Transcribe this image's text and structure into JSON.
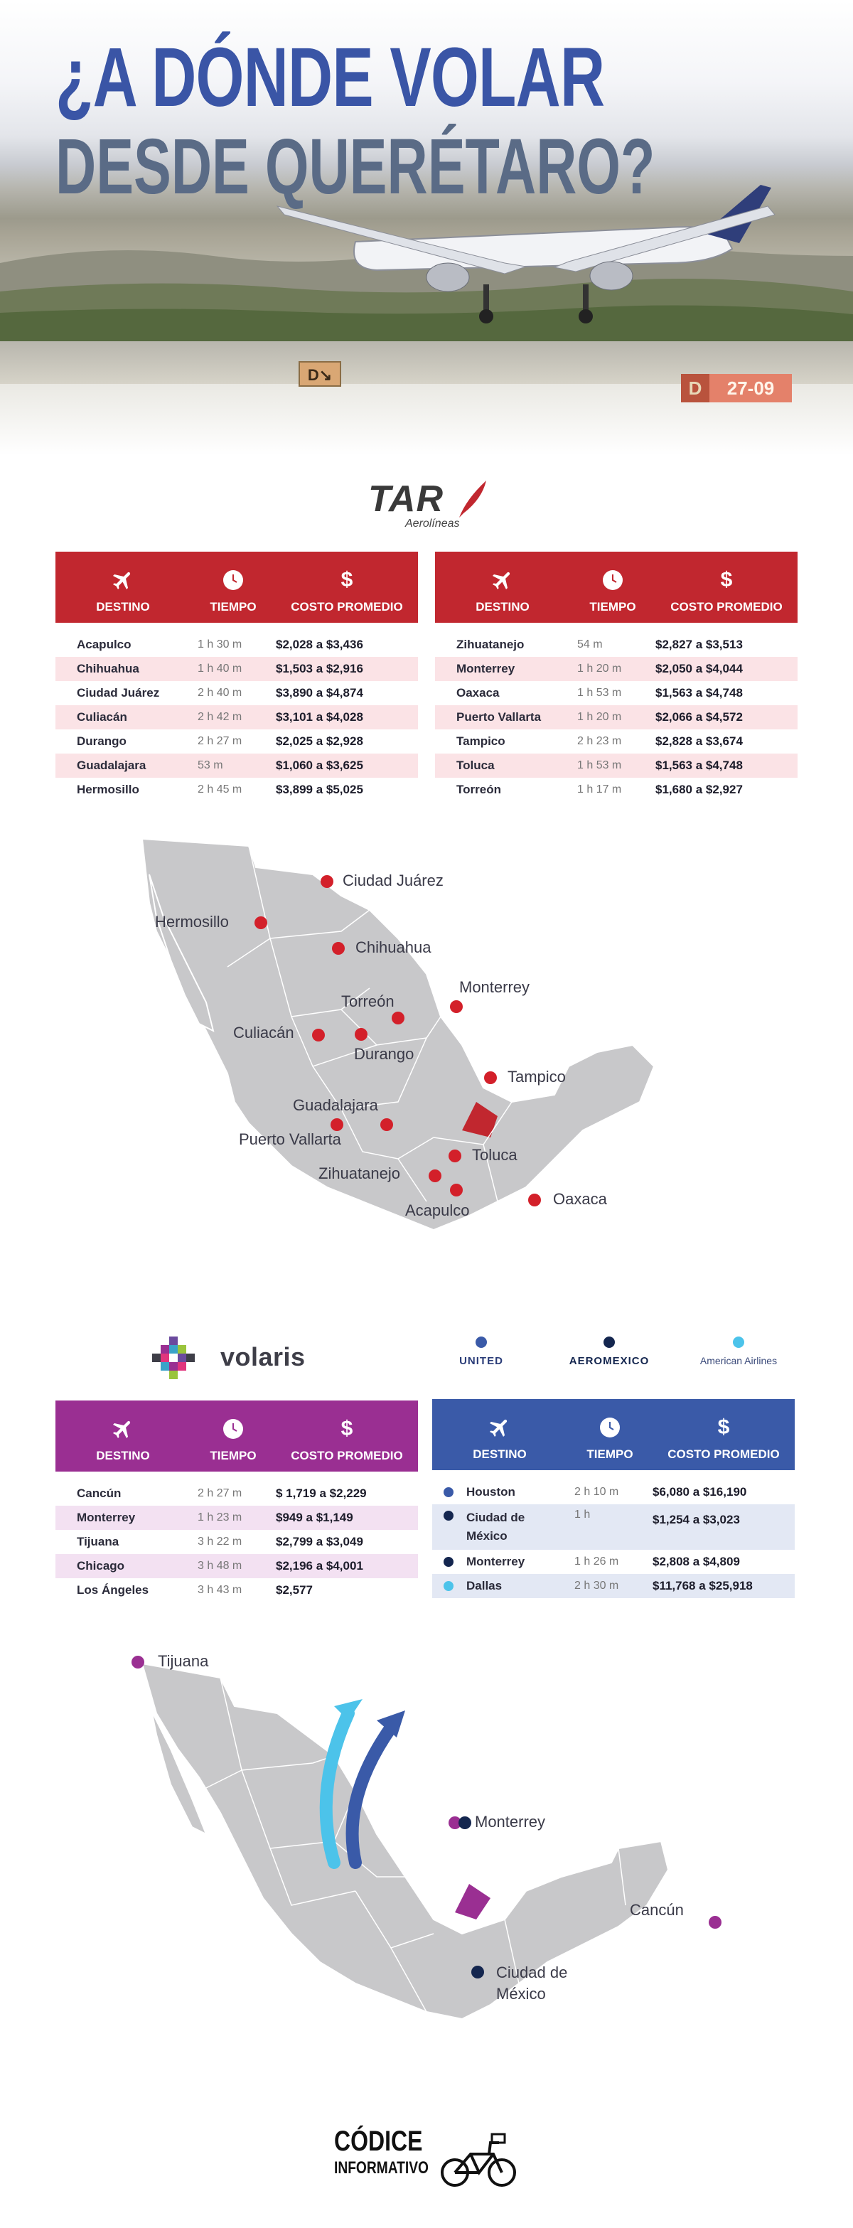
{
  "hero": {
    "title_line1": "¿A DÓNDE VOLAR",
    "title_line2": "DESDE QUERÉTARO?",
    "taxi_sign": "D↘",
    "runway_sign_left": "D",
    "runway_sign_right": "27-09"
  },
  "tar": {
    "logo_word": "TAR",
    "logo_sub": "Aerolíneas",
    "headers": {
      "destino": "DESTINO",
      "tiempo": "TIEMPO",
      "costo": "COSTO PROMEDIO",
      "dollar": "$"
    },
    "left_rows": [
      {
        "destino": "Acapulco",
        "tiempo": "1 h 30 m",
        "costo": "$2,028 a $3,436"
      },
      {
        "destino": "Chihuahua",
        "tiempo": "1 h 40 m",
        "costo": "$1,503 a $2,916"
      },
      {
        "destino": "Ciudad Juárez",
        "tiempo": "2 h 40 m",
        "costo": "$3,890 a $4,874"
      },
      {
        "destino": "Culiacán",
        "tiempo": "2 h 42 m",
        "costo": "$3,101 a $4,028"
      },
      {
        "destino": "Durango",
        "tiempo": "2 h 27 m",
        "costo": "$2,025 a $2,928"
      },
      {
        "destino": "Guadalajara",
        "tiempo": "53 m",
        "costo": "$1,060 a $3,625"
      },
      {
        "destino": "Hermosillo",
        "tiempo": "2 h 45 m",
        "costo": "$3,899 a $5,025"
      }
    ],
    "right_rows": [
      {
        "destino": "Zihuatanejo",
        "tiempo": "54 m",
        "costo": "$2,827 a $3,513"
      },
      {
        "destino": "Monterrey",
        "tiempo": "1 h 20 m",
        "costo": "$2,050 a $4,044"
      },
      {
        "destino": "Oaxaca",
        "tiempo": "1 h 53 m",
        "costo": "$1,563 a $4,748"
      },
      {
        "destino": "Puerto Vallarta",
        "tiempo": "1 h 20 m",
        "costo": "$2,066 a $4,572"
      },
      {
        "destino": "Tampico",
        "tiempo": "2 h 23 m",
        "costo": "$2,828 a $3,674"
      },
      {
        "destino": "Toluca",
        "tiempo": "1 h 53 m",
        "costo": "$1,563 a $4,748"
      },
      {
        "destino": "Torreón",
        "tiempo": "1 h 17 m",
        "costo": "$1,680 a $2,927"
      }
    ]
  },
  "map1": {
    "labels": [
      "Ciudad Juárez",
      "Hermosillo",
      "Chihuahua",
      "Monterrey",
      "Torreón",
      "Culiacán",
      "Durango",
      "Tampico",
      "Guadalajara",
      "Puerto Vallarta",
      "Toluca",
      "Zihuatanejo",
      "Oaxaca",
      "Acapulco"
    ]
  },
  "volaris": {
    "logo_word": "volaris",
    "headers": {
      "destino": "DESTINO",
      "tiempo": "TIEMPO",
      "costo": "COSTO PROMEDIO",
      "dollar": "$"
    },
    "rows": [
      {
        "destino": "Cancún",
        "tiempo": "2 h 27 m",
        "costo": "$ 1,719 a $2,229"
      },
      {
        "destino": "Monterrey",
        "tiempo": "1 h 23 m",
        "costo": "$949 a $1,149"
      },
      {
        "destino": "Tijuana",
        "tiempo": "3 h 22 m",
        "costo": "$2,799 a $3,049"
      },
      {
        "destino": "Chicago",
        "tiempo": "3 h 48 m",
        "costo": "$2,196 a $4,001"
      },
      {
        "destino": "Los Ángeles",
        "tiempo": "3 h 43 m",
        "costo": "$2,577"
      }
    ]
  },
  "partners": {
    "united": "UNITED",
    "aeromexico": "AEROMEXICO",
    "american": "American Airlines",
    "colors": {
      "united": "#3a5aa8",
      "aeromexico": "#14264f",
      "american": "#4cc3ea"
    }
  },
  "partners_table": {
    "headers": {
      "destino": "DESTINO",
      "tiempo": "TIEMPO",
      "costo": "COSTO PROMEDIO",
      "dollar": "$"
    },
    "rows": [
      {
        "destino": "Houston",
        "tiempo": "2 h 10 m",
        "costo": "$6,080 a $16,190",
        "dot": "#3a5aa8"
      },
      {
        "destino": "Ciudad de México",
        "tiempo": "1 h",
        "costo": "$1,254 a $3,023",
        "dot": "#14264f"
      },
      {
        "destino": "Monterrey",
        "tiempo": "1 h 26 m",
        "costo": "$2,808 a $4,809",
        "dot": "#14264f"
      },
      {
        "destino": "Dallas",
        "tiempo": "2 h 30 m",
        "costo": "$11,768 a $25,918",
        "dot": "#4cc3ea"
      }
    ]
  },
  "map2": {
    "labels": [
      "Tijuana",
      "Monterrey",
      "Cancún",
      "Ciudad de México"
    ]
  },
  "footer": {
    "line1": "CÓDICE",
    "line2": "INFORMATIVO"
  },
  "colors": {
    "tar_red": "#c1272f",
    "volaris_purple": "#9a2f92",
    "partners_blue": "#3a5aa8",
    "title_blue": "#3a55a6",
    "pin_red": "#d3202a"
  }
}
